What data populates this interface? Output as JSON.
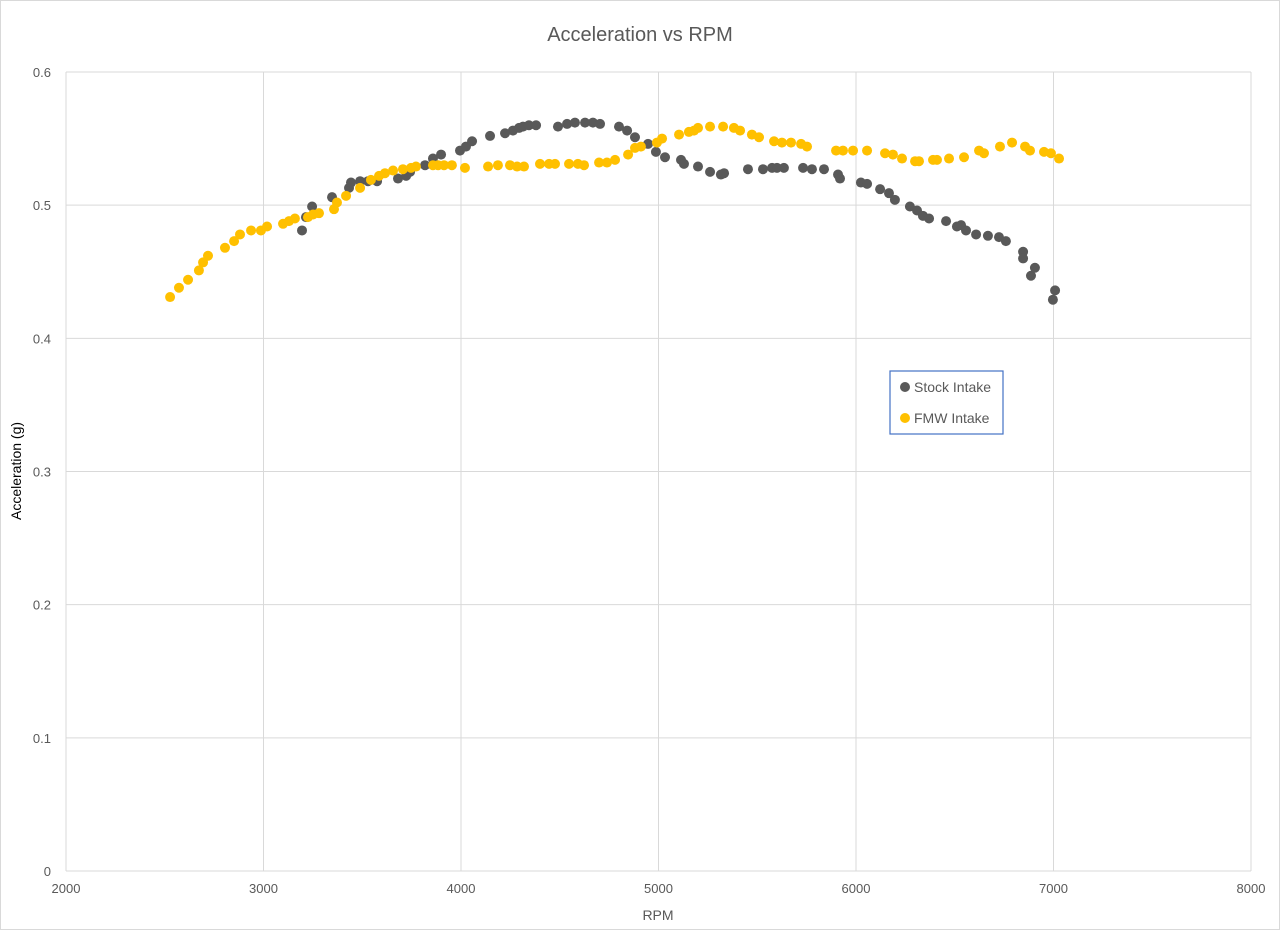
{
  "chart_data": {
    "type": "scatter",
    "title": "Acceleration vs RPM",
    "xlabel": "RPM",
    "ylabel": "Acceleration (g)",
    "xlim": [
      2000,
      8000
    ],
    "ylim": [
      0,
      0.6
    ],
    "xticks": [
      2000,
      3000,
      4000,
      5000,
      6000,
      7000,
      8000
    ],
    "yticks": [
      0,
      0.1,
      0.2,
      0.3,
      0.4,
      0.5,
      0.6
    ],
    "grid": true,
    "legend_position": "right-center",
    "series": [
      {
        "name": "Stock Intake",
        "color": "#595959",
        "x": [
          3195,
          3215,
          3246,
          3347,
          3433,
          3443,
          3489,
          3529,
          3575,
          3681,
          3722,
          3742,
          3818,
          3858,
          3899,
          3995,
          4025,
          4056,
          4147,
          4223,
          4263,
          4294,
          4314,
          4344,
          4380,
          4491,
          4537,
          4577,
          4628,
          4668,
          4704,
          4800,
          4841,
          4881,
          4947,
          4987,
          5033,
          5114,
          5129,
          5200,
          5261,
          5316,
          5332,
          5453,
          5529,
          5575,
          5600,
          5635,
          5732,
          5777,
          5838,
          5909,
          5919,
          6025,
          6056,
          6122,
          6167,
          6197,
          6273,
          6309,
          6339,
          6370,
          6456,
          6511,
          6532,
          6557,
          6608,
          6668,
          6724,
          6759,
          6846,
          6846,
          6886,
          6906,
          6997,
          7008
        ],
        "y": [
          0.481,
          0.491,
          0.499,
          0.506,
          0.513,
          0.517,
          0.518,
          0.518,
          0.518,
          0.52,
          0.522,
          0.525,
          0.53,
          0.535,
          0.538,
          0.541,
          0.544,
          0.548,
          0.552,
          0.554,
          0.556,
          0.558,
          0.559,
          0.56,
          0.56,
          0.559,
          0.561,
          0.562,
          0.562,
          0.562,
          0.561,
          0.559,
          0.556,
          0.551,
          0.546,
          0.54,
          0.536,
          0.534,
          0.531,
          0.529,
          0.525,
          0.523,
          0.524,
          0.527,
          0.527,
          0.528,
          0.528,
          0.528,
          0.528,
          0.527,
          0.527,
          0.523,
          0.52,
          0.517,
          0.516,
          0.512,
          0.509,
          0.504,
          0.499,
          0.496,
          0.492,
          0.49,
          0.488,
          0.484,
          0.485,
          0.481,
          0.478,
          0.477,
          0.476,
          0.473,
          0.465,
          0.46,
          0.447,
          0.453,
          0.429,
          0.436
        ]
      },
      {
        "name": "FMW Intake",
        "color": "#FFC000",
        "x": [
          2527,
          2572,
          2618,
          2673,
          2694,
          2719,
          2805,
          2851,
          2881,
          2937,
          2987,
          3018,
          3099,
          3129,
          3159,
          3225,
          3251,
          3281,
          3357,
          3372,
          3418,
          3489,
          3544,
          3585,
          3615,
          3656,
          3706,
          3747,
          3772,
          3858,
          3884,
          3914,
          3954,
          4020,
          4137,
          4187,
          4248,
          4284,
          4319,
          4400,
          4446,
          4476,
          4547,
          4592,
          4623,
          4699,
          4739,
          4780,
          4846,
          4881,
          4911,
          4992,
          5018,
          5104,
          5154,
          5180,
          5200,
          5261,
          5327,
          5382,
          5413,
          5473,
          5509,
          5585,
          5625,
          5671,
          5722,
          5752,
          5899,
          5934,
          5985,
          6056,
          6147,
          6187,
          6233,
          6299,
          6319,
          6390,
          6410,
          6471,
          6547,
          6623,
          6648,
          6729,
          6790,
          6856,
          6881,
          6952,
          6987,
          7028
        ],
        "y": [
          0.431,
          0.438,
          0.444,
          0.451,
          0.457,
          0.462,
          0.468,
          0.473,
          0.478,
          0.481,
          0.481,
          0.484,
          0.486,
          0.488,
          0.49,
          0.491,
          0.493,
          0.494,
          0.497,
          0.502,
          0.507,
          0.513,
          0.519,
          0.522,
          0.524,
          0.526,
          0.527,
          0.528,
          0.529,
          0.53,
          0.53,
          0.53,
          0.53,
          0.528,
          0.529,
          0.53,
          0.53,
          0.529,
          0.529,
          0.531,
          0.531,
          0.531,
          0.531,
          0.531,
          0.53,
          0.532,
          0.532,
          0.534,
          0.538,
          0.543,
          0.544,
          0.547,
          0.55,
          0.553,
          0.555,
          0.556,
          0.558,
          0.559,
          0.559,
          0.558,
          0.556,
          0.553,
          0.551,
          0.548,
          0.547,
          0.547,
          0.546,
          0.544,
          0.541,
          0.541,
          0.541,
          0.541,
          0.539,
          0.538,
          0.535,
          0.533,
          0.533,
          0.534,
          0.534,
          0.535,
          0.536,
          0.541,
          0.539,
          0.544,
          0.547,
          0.544,
          0.541,
          0.54,
          0.539,
          0.535
        ]
      }
    ]
  }
}
